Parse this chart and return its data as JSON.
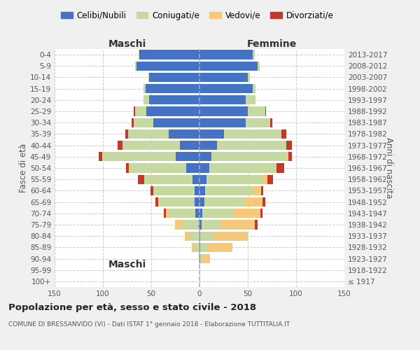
{
  "age_groups": [
    "100+",
    "95-99",
    "90-94",
    "85-89",
    "80-84",
    "75-79",
    "70-74",
    "65-69",
    "60-64",
    "55-59",
    "50-54",
    "45-49",
    "40-44",
    "35-39",
    "30-34",
    "25-29",
    "20-24",
    "15-19",
    "10-14",
    "5-9",
    "0-4"
  ],
  "birth_years": [
    "≤ 1917",
    "1918-1922",
    "1923-1927",
    "1928-1932",
    "1933-1937",
    "1938-1942",
    "1943-1947",
    "1948-1952",
    "1953-1957",
    "1958-1962",
    "1963-1967",
    "1968-1972",
    "1973-1977",
    "1978-1982",
    "1983-1987",
    "1988-1992",
    "1993-1997",
    "1998-2002",
    "2003-2007",
    "2008-2012",
    "2013-2017"
  ],
  "colors": {
    "celibe": "#4472c4",
    "coniugato": "#c5d9a0",
    "vedovo": "#f5c87a",
    "divorziato": "#c0392b"
  },
  "male": {
    "celibe": [
      0,
      0,
      0,
      0,
      0,
      1,
      4,
      5,
      5,
      7,
      14,
      25,
      20,
      32,
      48,
      55,
      52,
      56,
      52,
      65,
      62
    ],
    "coniugato": [
      0,
      0,
      1,
      6,
      10,
      18,
      28,
      36,
      42,
      50,
      58,
      75,
      60,
      42,
      20,
      12,
      6,
      2,
      1,
      2,
      1
    ],
    "vedovo": [
      0,
      0,
      0,
      2,
      5,
      6,
      3,
      2,
      1,
      0,
      1,
      1,
      0,
      0,
      0,
      0,
      0,
      0,
      0,
      0,
      0
    ],
    "divorziato": [
      0,
      0,
      0,
      0,
      0,
      0,
      2,
      3,
      3,
      7,
      3,
      3,
      5,
      3,
      2,
      1,
      0,
      0,
      0,
      0,
      0
    ]
  },
  "female": {
    "nubile": [
      0,
      0,
      1,
      1,
      1,
      2,
      3,
      5,
      6,
      7,
      10,
      12,
      18,
      25,
      48,
      50,
      48,
      55,
      50,
      60,
      55
    ],
    "coniugata": [
      0,
      0,
      2,
      8,
      14,
      20,
      32,
      42,
      50,
      58,
      68,
      78,
      72,
      60,
      25,
      18,
      10,
      3,
      2,
      2,
      2
    ],
    "vedova": [
      1,
      1,
      8,
      25,
      35,
      35,
      28,
      18,
      8,
      5,
      2,
      2,
      0,
      0,
      0,
      0,
      0,
      0,
      0,
      0,
      0
    ],
    "divorziata": [
      0,
      0,
      0,
      0,
      0,
      3,
      2,
      3,
      2,
      6,
      8,
      4,
      6,
      5,
      2,
      1,
      0,
      0,
      0,
      0,
      0
    ]
  },
  "title": "Popolazione per età, sesso e stato civile - 2018",
  "subtitle": "COMUNE DI BRESSANVIDO (VI) - Dati ISTAT 1° gennaio 2018 - Elaborazione TUTTITALIA.IT",
  "xlabel_left": "Maschi",
  "xlabel_right": "Femmine",
  "ylabel_left": "Fasce di età",
  "ylabel_right": "Anni di nascita",
  "xlim": 150,
  "legend_labels": [
    "Celibi/Nubili",
    "Coniugati/e",
    "Vedovi/e",
    "Divorziati/e"
  ],
  "bg_color": "#f0f0f0",
  "plot_bg_color": "#ffffff",
  "grid_color": "#cccccc"
}
